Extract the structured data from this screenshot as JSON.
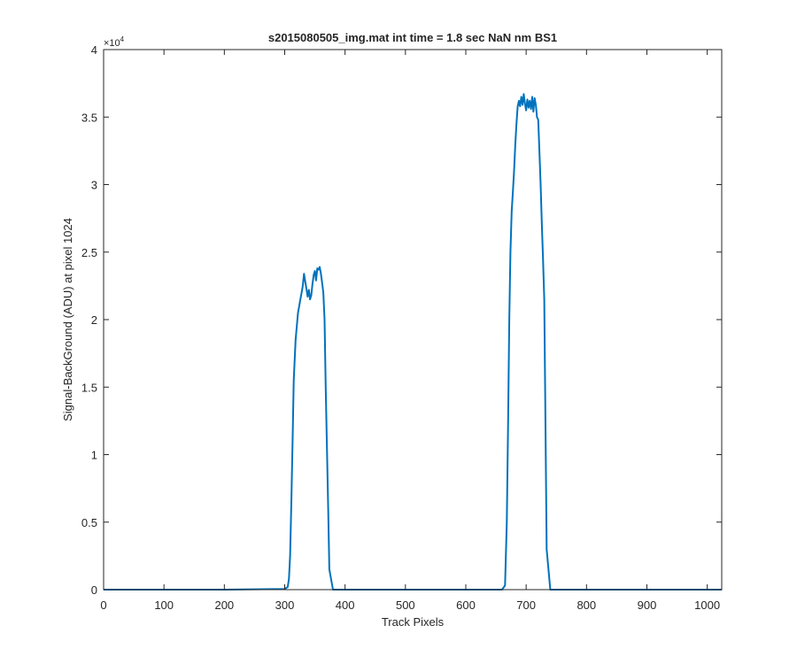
{
  "figure": {
    "background": "#ffffff"
  },
  "chart_data": {
    "type": "line",
    "title": "s2015080505_img.mat int time = 1.8 sec  NaN nm BS1",
    "xlabel": "Track Pixels",
    "ylabel": "Signal-BackGround (ADU) at pixel 1024",
    "xlim": [
      0,
      1024
    ],
    "ylim": [
      0,
      40000
    ],
    "y_exponent_label": "×10",
    "y_exponent_power": "4",
    "x_ticks": [
      0,
      100,
      200,
      300,
      400,
      500,
      600,
      700,
      800,
      900,
      1000
    ],
    "x_tick_labels": [
      "0",
      "100",
      "200",
      "300",
      "400",
      "500",
      "600",
      "700",
      "800",
      "900",
      "1000"
    ],
    "y_ticks": [
      0,
      5000,
      10000,
      15000,
      20000,
      25000,
      30000,
      35000,
      40000
    ],
    "y_tick_labels": [
      "0",
      "0.5",
      "1",
      "1.5",
      "2",
      "2.5",
      "3",
      "3.5",
      "4"
    ],
    "grid": false,
    "legend": false,
    "series": [
      {
        "color": "#0072BD",
        "x": [
          0,
          100,
          200,
          300,
          305,
          307,
          309,
          311,
          313,
          315,
          318,
          322,
          326,
          328,
          330,
          332,
          334,
          336,
          338,
          340,
          342,
          344,
          346,
          348,
          350,
          352,
          354,
          356,
          358,
          360,
          362,
          364,
          366,
          368,
          370,
          372,
          374,
          380,
          400,
          500,
          600,
          660,
          665,
          668,
          670,
          672,
          674,
          676,
          678,
          680,
          682,
          684,
          686,
          688,
          690,
          692,
          694,
          696,
          698,
          700,
          702,
          704,
          706,
          708,
          710,
          712,
          714,
          716,
          718,
          720,
          722,
          724,
          726,
          728,
          730,
          732,
          734,
          740,
          800,
          900,
          1024
        ],
        "y": [
          0,
          0,
          0,
          50,
          200,
          800,
          2500,
          6500,
          11000,
          15500,
          18500,
          20500,
          21500,
          22000,
          22500,
          23400,
          22800,
          22300,
          21700,
          22200,
          21500,
          21800,
          22600,
          23300,
          23600,
          22900,
          23800,
          23700,
          23900,
          23400,
          22700,
          22000,
          20000,
          15000,
          10500,
          6000,
          1500,
          0,
          0,
          0,
          0,
          0,
          300,
          5000,
          12000,
          20000,
          25000,
          28000,
          29500,
          31000,
          33000,
          34500,
          35800,
          36200,
          35800,
          36500,
          35900,
          36700,
          36000,
          35500,
          36300,
          35700,
          36200,
          35600,
          36500,
          35400,
          36400,
          35900,
          35000,
          34800,
          32500,
          30000,
          27000,
          24500,
          21500,
          12000,
          3000,
          0,
          0,
          0,
          0
        ]
      }
    ]
  }
}
